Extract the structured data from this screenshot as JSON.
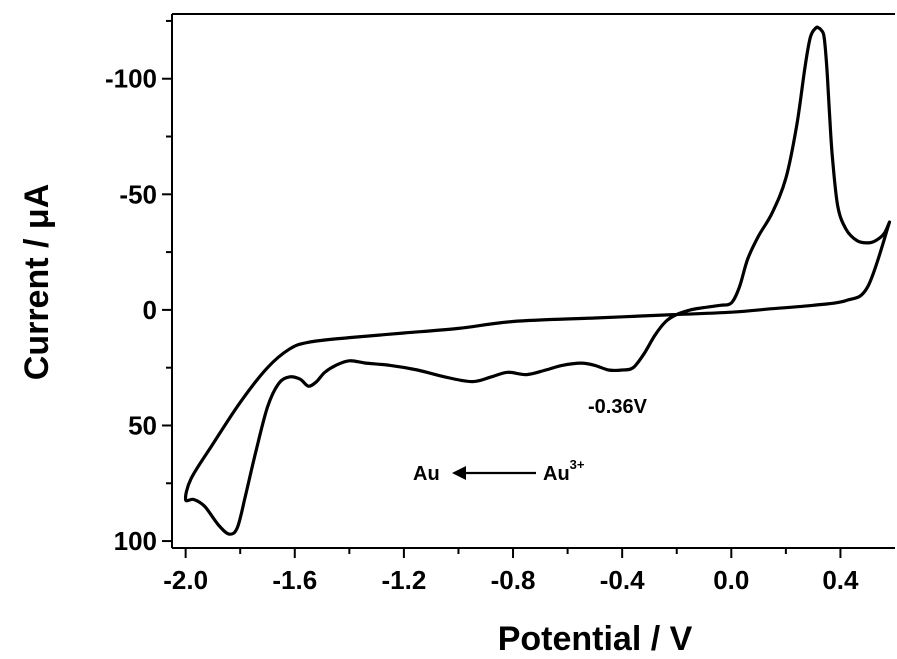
{
  "chart_data": {
    "type": "line",
    "xlabel": "Potential / V",
    "ylabel": "Current / μA",
    "xlim": [
      -2.05,
      0.6
    ],
    "ylim": [
      -128,
      103
    ],
    "y_inverted": true,
    "grid": false,
    "x_ticks": [
      -2.0,
      -1.6,
      -1.2,
      -0.8,
      -0.4,
      0.0,
      0.4
    ],
    "x_tick_labels": [
      "-2.0",
      "-1.6",
      "-1.2",
      "-0.8",
      "-0.4",
      "0.0",
      "0.4"
    ],
    "y_ticks": [
      -100,
      -50,
      0,
      50,
      100
    ],
    "y_tick_labels": [
      "-100",
      "-50",
      "0",
      "50",
      "100"
    ],
    "annotations": {
      "peak_label": "-0.36V",
      "reaction_product": "Au",
      "reaction_reactant": "Au",
      "reaction_reactant_sup": "3+"
    },
    "series": [
      {
        "x": [
          0.58,
          0.5,
          0.42,
          0.3,
          0.15,
          0.0,
          -0.2,
          -0.5,
          -0.8,
          -1.0,
          -1.2,
          -1.4,
          -1.55,
          -1.62,
          -1.7,
          -1.8,
          -1.9,
          -1.98,
          -2.0,
          -1.97,
          -1.93,
          -1.88,
          -1.84,
          -1.81,
          -1.78,
          -1.74,
          -1.7,
          -1.66,
          -1.62,
          -1.58,
          -1.55,
          -1.52,
          -1.49,
          -1.45,
          -1.4,
          -1.34,
          -1.25,
          -1.15,
          -1.05,
          -0.95,
          -0.88,
          -0.82,
          -0.75,
          -0.68,
          -0.62,
          -0.55,
          -0.5,
          -0.45,
          -0.4,
          -0.36,
          -0.32,
          -0.28,
          -0.24,
          -0.2,
          -0.15,
          -0.1,
          -0.04,
          0.0,
          0.03,
          0.06,
          0.1,
          0.15,
          0.2,
          0.24,
          0.27,
          0.29,
          0.31,
          0.32,
          0.33,
          0.34,
          0.35,
          0.36,
          0.37,
          0.39,
          0.42,
          0.46,
          0.5,
          0.53,
          0.56,
          0.58
        ],
        "y": [
          -38,
          -10,
          -4,
          -2,
          -0.5,
          1,
          2,
          3.5,
          5,
          8,
          10,
          12,
          14,
          17,
          25,
          40,
          58,
          73,
          82,
          82,
          85,
          93,
          97,
          94,
          80,
          60,
          42,
          32,
          29,
          30,
          33,
          31,
          27,
          24,
          22,
          23,
          24,
          26,
          29,
          31,
          29,
          27,
          28,
          26,
          24,
          23,
          24,
          26,
          26,
          25,
          19,
          11,
          5,
          2,
          0,
          -1,
          -2,
          -3,
          -10,
          -22,
          -32,
          -42,
          -57,
          -80,
          -105,
          -118,
          -122,
          -122,
          -121,
          -118,
          -105,
          -85,
          -67,
          -45,
          -35,
          -30,
          -29,
          -30,
          -33,
          -38
        ]
      }
    ]
  }
}
